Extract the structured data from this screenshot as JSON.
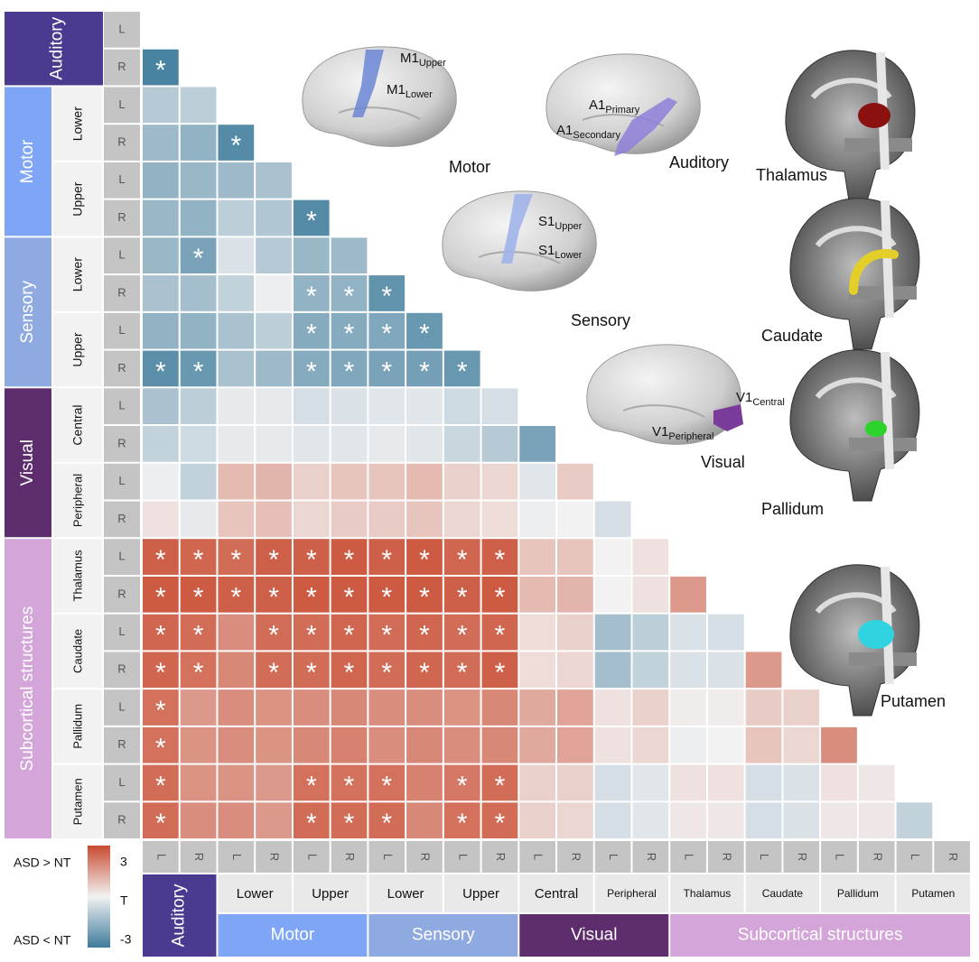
{
  "chart_data": {
    "type": "heatmap",
    "zlim": [
      -3,
      3
    ],
    "colorscale": {
      "low": "#3e7b9c",
      "mid": "#f2f2f2",
      "high": "#c94a30"
    },
    "sides": [
      "L",
      "R"
    ],
    "groups": [
      {
        "name": "Auditory",
        "color": "#4b3a8f",
        "subgroups": []
      },
      {
        "name": "Motor",
        "color": "#7fa6f6",
        "subgroups": [
          "Lower",
          "Upper"
        ]
      },
      {
        "name": "Sensory",
        "color": "#8eaae0",
        "subgroups": [
          "Lower",
          "Upper"
        ]
      },
      {
        "name": "Visual",
        "color": "#5e2d6e",
        "subgroups": [
          "Central",
          "Peripheral"
        ]
      },
      {
        "name": "Subcortical structures",
        "color": "#d3a5d8",
        "subgroups": [
          "Thalamus",
          "Caudate",
          "Pallidum",
          "Putamen"
        ]
      }
    ],
    "values": [
      [],
      [
        -2.8
      ],
      [
        -1.0,
        -0.9
      ],
      [
        -1.4,
        -1.6,
        -2.6
      ],
      [
        -1.6,
        -1.5,
        -1.4,
        -1.2
      ],
      [
        -1.5,
        -1.6,
        -0.9,
        -1.1,
        -2.6
      ],
      [
        -1.5,
        -2.0,
        -0.4,
        -1.0,
        -1.5,
        -1.4
      ],
      [
        -1.2,
        -1.3,
        -0.8,
        -0.1,
        -1.6,
        -1.6,
        -2.4
      ],
      [
        -1.6,
        -1.6,
        -1.2,
        -0.9,
        -1.8,
        -1.8,
        -1.9,
        -2.3
      ],
      [
        -2.5,
        -2.3,
        -1.2,
        -1.4,
        -1.8,
        -1.9,
        -2.0,
        -2.1,
        -2.3
      ],
      [
        -1.2,
        -0.9,
        -0.2,
        -0.2,
        -0.5,
        -0.4,
        -0.3,
        -0.3,
        -0.6,
        -0.5
      ],
      [
        -0.8,
        -0.6,
        -0.2,
        -0.2,
        -0.3,
        -0.3,
        -0.2,
        -0.3,
        -0.7,
        -1.0,
        -2.0
      ],
      [
        -0.1,
        -0.8,
        1.0,
        1.1,
        0.6,
        0.8,
        0.8,
        1.0,
        0.6,
        0.5,
        -0.3,
        0.7
      ],
      [
        0.3,
        -0.2,
        0.8,
        0.9,
        0.5,
        0.7,
        0.7,
        0.8,
        0.5,
        0.4,
        -0.1,
        0.0,
        -0.5
      ],
      [
        2.6,
        2.5,
        2.4,
        2.6,
        2.6,
        2.7,
        2.6,
        2.7,
        2.5,
        2.6,
        0.8,
        0.8,
        0.0,
        0.3
      ],
      [
        2.7,
        2.7,
        2.6,
        2.6,
        2.7,
        2.7,
        2.7,
        2.7,
        2.6,
        2.7,
        1.0,
        1.1,
        0.0,
        0.3,
        1.6
      ],
      [
        2.5,
        2.4,
        1.8,
        2.4,
        2.4,
        2.5,
        2.4,
        2.5,
        2.4,
        2.5,
        0.4,
        0.6,
        -1.3,
        -0.9,
        -0.4,
        -0.5
      ],
      [
        2.5,
        2.3,
        1.9,
        2.4,
        2.4,
        2.5,
        2.4,
        2.5,
        2.4,
        2.6,
        0.4,
        0.5,
        -1.3,
        -0.8,
        -0.4,
        -0.4,
        1.6
      ],
      [
        2.3,
        1.6,
        1.8,
        1.7,
        1.8,
        1.9,
        1.8,
        1.8,
        1.7,
        1.9,
        1.3,
        1.4,
        0.3,
        0.6,
        0.1,
        0.1,
        0.7,
        0.6
      ],
      [
        2.3,
        1.7,
        1.8,
        1.7,
        1.9,
        2.0,
        1.8,
        1.9,
        1.8,
        1.9,
        1.3,
        1.4,
        0.3,
        0.5,
        -0.1,
        0.0,
        0.8,
        0.5,
        1.8
      ],
      [
        2.4,
        1.7,
        1.7,
        1.6,
        2.3,
        2.3,
        2.3,
        2.0,
        2.2,
        2.4,
        0.6,
        0.6,
        -0.5,
        -0.3,
        0.3,
        0.3,
        -0.5,
        -0.4,
        0.3,
        0.2
      ],
      [
        2.4,
        1.8,
        1.8,
        1.6,
        2.4,
        2.4,
        2.4,
        1.9,
        2.3,
        2.4,
        0.6,
        0.5,
        -0.5,
        -0.3,
        0.2,
        0.2,
        -0.5,
        -0.4,
        0.2,
        0.2,
        -0.8
      ]
    ],
    "star_label": "*",
    "significant": [
      [],
      [
        0
      ],
      [],
      [
        2
      ],
      [],
      [
        4
      ],
      [
        1
      ],
      [
        4,
        5,
        6
      ],
      [
        4,
        5,
        6,
        7
      ],
      [
        0,
        1,
        4,
        5,
        6,
        7,
        8
      ],
      [],
      [],
      [],
      [],
      [
        0,
        1,
        2,
        3,
        4,
        5,
        6,
        7,
        8,
        9
      ],
      [
        0,
        1,
        2,
        3,
        4,
        5,
        6,
        7,
        8,
        9
      ],
      [
        0,
        1,
        3,
        4,
        5,
        6,
        7,
        8,
        9
      ],
      [
        0,
        1,
        3,
        4,
        5,
        6,
        7,
        8,
        9
      ],
      [
        0
      ],
      [
        0
      ],
      [
        0,
        4,
        5,
        6,
        8,
        9
      ],
      [
        0,
        4,
        5,
        6,
        8,
        9
      ]
    ],
    "legend": {
      "high_label": "ASD > NT",
      "low_label": "ASD < NT",
      "ticks": [
        3,
        {
          "value": 0,
          "label": "T"
        },
        -3
      ]
    },
    "brain_panels": [
      {
        "title": "Motor",
        "labels": [
          {
            "main": "M1",
            "sub": "Upper"
          },
          {
            "main": "M1",
            "sub": "Lower"
          }
        ]
      },
      {
        "title": "Auditory",
        "labels": [
          {
            "main": "A1",
            "sub": "Primary"
          },
          {
            "main": "A1",
            "sub": "Secondary"
          }
        ]
      },
      {
        "title": "Thalamus",
        "labels": []
      },
      {
        "title": "Sensory",
        "labels": [
          {
            "main": "S1",
            "sub": "Upper"
          },
          {
            "main": "S1",
            "sub": "Lower"
          }
        ]
      },
      {
        "title": "Caudate",
        "labels": []
      },
      {
        "title": "Visual",
        "labels": [
          {
            "main": "V1",
            "sub": "Peripheral"
          },
          {
            "main": "V1",
            "sub": "Central"
          }
        ]
      },
      {
        "title": "Pallidum",
        "labels": []
      },
      {
        "title": "Putamen",
        "labels": []
      }
    ]
  }
}
